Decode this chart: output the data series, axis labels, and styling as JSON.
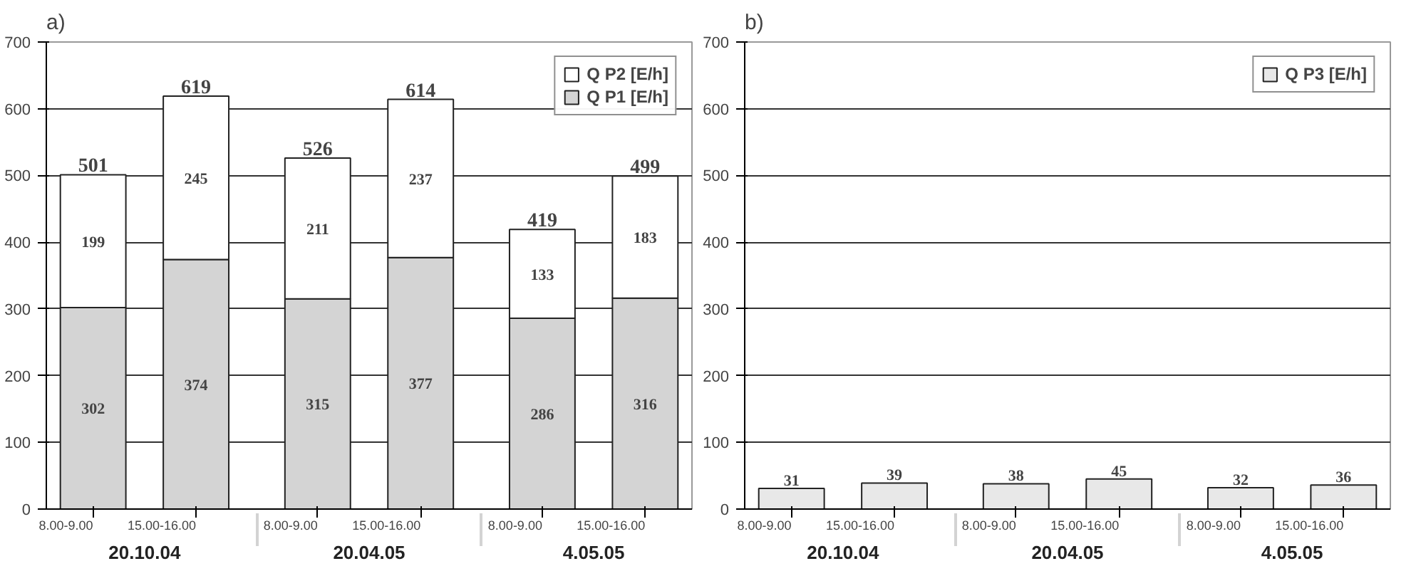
{
  "chart_data": [
    {
      "type": "bar",
      "title": "a)",
      "categories": [
        "8.00-9.00",
        "15.00-16.00",
        "8.00-9.00",
        "15.00-16.00",
        "8.00-9.00",
        "15.00-16.00"
      ],
      "stacked": true,
      "data_labels": true,
      "series": [
        {
          "name": "Q P1 [E/h]",
          "color": "#d4d4d4",
          "values": [
            302,
            374,
            315,
            377,
            286,
            316
          ]
        },
        {
          "name": "Q P2 [E/h]",
          "color": "#ffffff",
          "values": [
            199,
            245,
            211,
            237,
            133,
            183
          ]
        }
      ],
      "totals": [
        "501",
        "619",
        "526",
        "614",
        "419",
        "499"
      ],
      "annotations": [
        "20.10.04",
        "20.04.05",
        "4.05.05"
      ],
      "ylim": [
        0,
        700
      ],
      "yticks": [
        0,
        100,
        200,
        300,
        400,
        500,
        600,
        700
      ],
      "grid": "y",
      "legend": "top right"
    },
    {
      "type": "bar",
      "title": "b)",
      "categories": [
        "8.00-9.00",
        "15.00-16.00",
        "8.00-9.00",
        "15.00-16.00",
        "8.00-9.00",
        "15.00-16.00"
      ],
      "data_labels": true,
      "series": [
        {
          "name": "Q P3 [E/h]",
          "color": "#e8e8e8",
          "values": [
            31,
            39,
            38,
            45,
            32,
            36
          ]
        }
      ],
      "annotations": [
        "20.10.04",
        "20.04.05",
        "4.05.05"
      ],
      "ylim": [
        0,
        700
      ],
      "yticks": [
        0,
        100,
        200,
        300,
        400,
        500,
        600,
        700
      ],
      "grid": "y",
      "legend": "top right"
    }
  ]
}
